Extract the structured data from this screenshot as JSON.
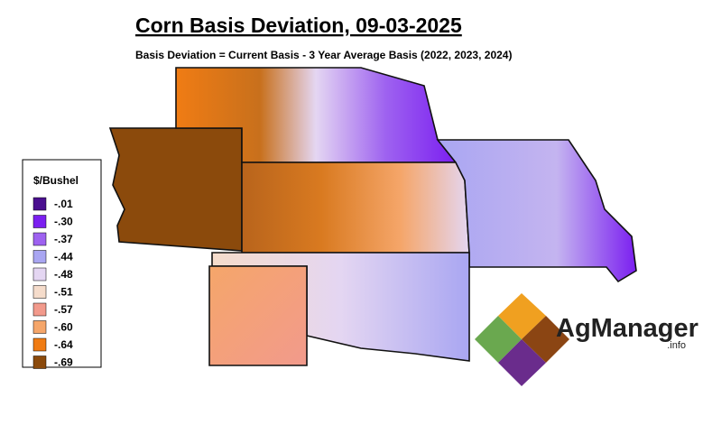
{
  "header": {
    "title": "Corn Basis Deviation, 09-03-2025",
    "subtitle": "Basis Deviation = Current Basis - 3 Year Average Basis (2022, 2023, 2024)"
  },
  "legend": {
    "title": "$/Bushel",
    "items": [
      {
        "label": "-.01",
        "color": "#4a0f8f"
      },
      {
        "label": "-.30",
        "color": "#7b1ff0"
      },
      {
        "label": "-.37",
        "color": "#9e62f0"
      },
      {
        "label": "-.44",
        "color": "#a9a6f2"
      },
      {
        "label": "-.48",
        "color": "#e4d6f2"
      },
      {
        "label": "-.51",
        "color": "#f5dccb"
      },
      {
        "label": "-.57",
        "color": "#f29a8c"
      },
      {
        "label": "-.60",
        "color": "#f5a66a"
      },
      {
        "label": "-.64",
        "color": "#f07c14"
      },
      {
        "label": "-.69",
        "color": "#8b4a0c"
      }
    ]
  },
  "logo": {
    "name": "AgManager",
    "suffix": ".info"
  }
}
